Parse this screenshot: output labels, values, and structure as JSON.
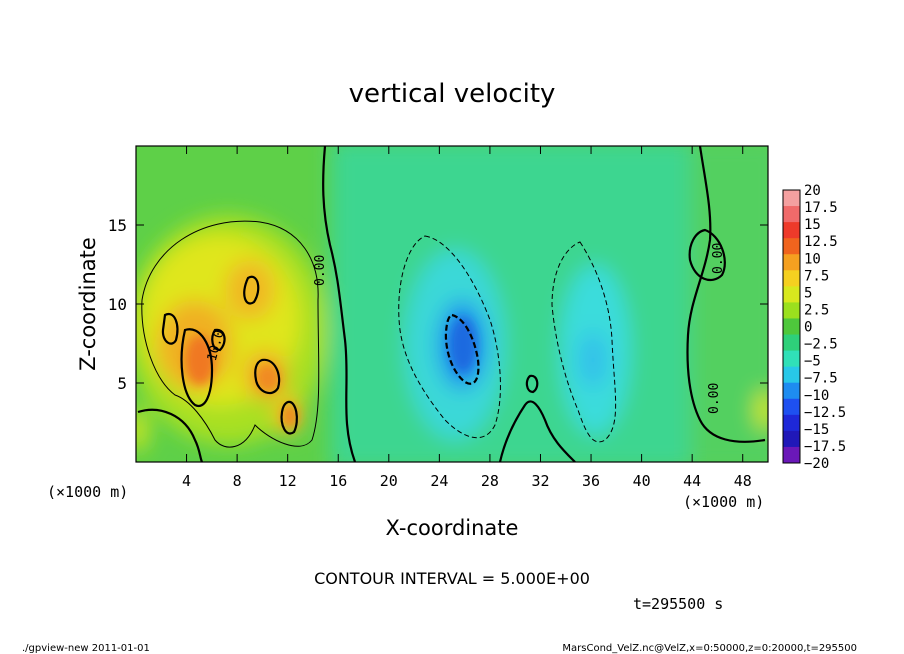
{
  "chart_data": {
    "type": "heatmap",
    "title": "vertical velocity",
    "xlabel": "X-coordinate",
    "ylabel": "Z-coordinate",
    "x_unit": "(×1000 m)",
    "z_unit": "(×1000 m)",
    "xlim": [
      0,
      50
    ],
    "zlim": [
      0,
      20
    ],
    "x_ticks": [
      4,
      8,
      12,
      16,
      20,
      24,
      28,
      32,
      36,
      40,
      44,
      48
    ],
    "z_ticks": [
      5,
      10,
      15
    ],
    "colorbar": {
      "labels": [
        "20",
        "17.5",
        "15",
        "12.5",
        "10",
        "7.5",
        "5",
        "2.5",
        "0",
        "−2.5",
        "−5",
        "−7.5",
        "−10",
        "−12.5",
        "−15",
        "−17.5",
        "−20"
      ],
      "colors": [
        "#f4a0a0",
        "#f06a6a",
        "#ee3a2a",
        "#f0641e",
        "#f5a020",
        "#f5d020",
        "#d8e81e",
        "#9be01e",
        "#4ec83c",
        "#2ed07a",
        "#30e0b8",
        "#28c8e8",
        "#1e8cf0",
        "#1e50f0",
        "#1e28d8",
        "#2018b8",
        "#6a18b8"
      ]
    },
    "contour_interval": "CONTOUR INTERVAL = 5.000E+00",
    "contour_labels": [
      "10.0",
      "0.00",
      "0.00",
      "0.00"
    ],
    "features": [
      {
        "kind": "updraft",
        "center_x": 6,
        "center_z": 7,
        "peak": 12.5
      },
      {
        "kind": "updraft",
        "center_x": 10,
        "center_z": 10,
        "peak": 10
      },
      {
        "kind": "downdraft",
        "center_x": 25.5,
        "center_z": 7,
        "peak": -10
      },
      {
        "kind": "downdraft",
        "center_x": 36,
        "center_z": 7,
        "peak": -7.5
      }
    ]
  },
  "time_label": "t=295500 s",
  "footer_left": "./gpview-new   2011-01-01",
  "footer_right": "MarsCond_VelZ.nc@VelZ,x=0:50000,z=0:20000,t=295500"
}
